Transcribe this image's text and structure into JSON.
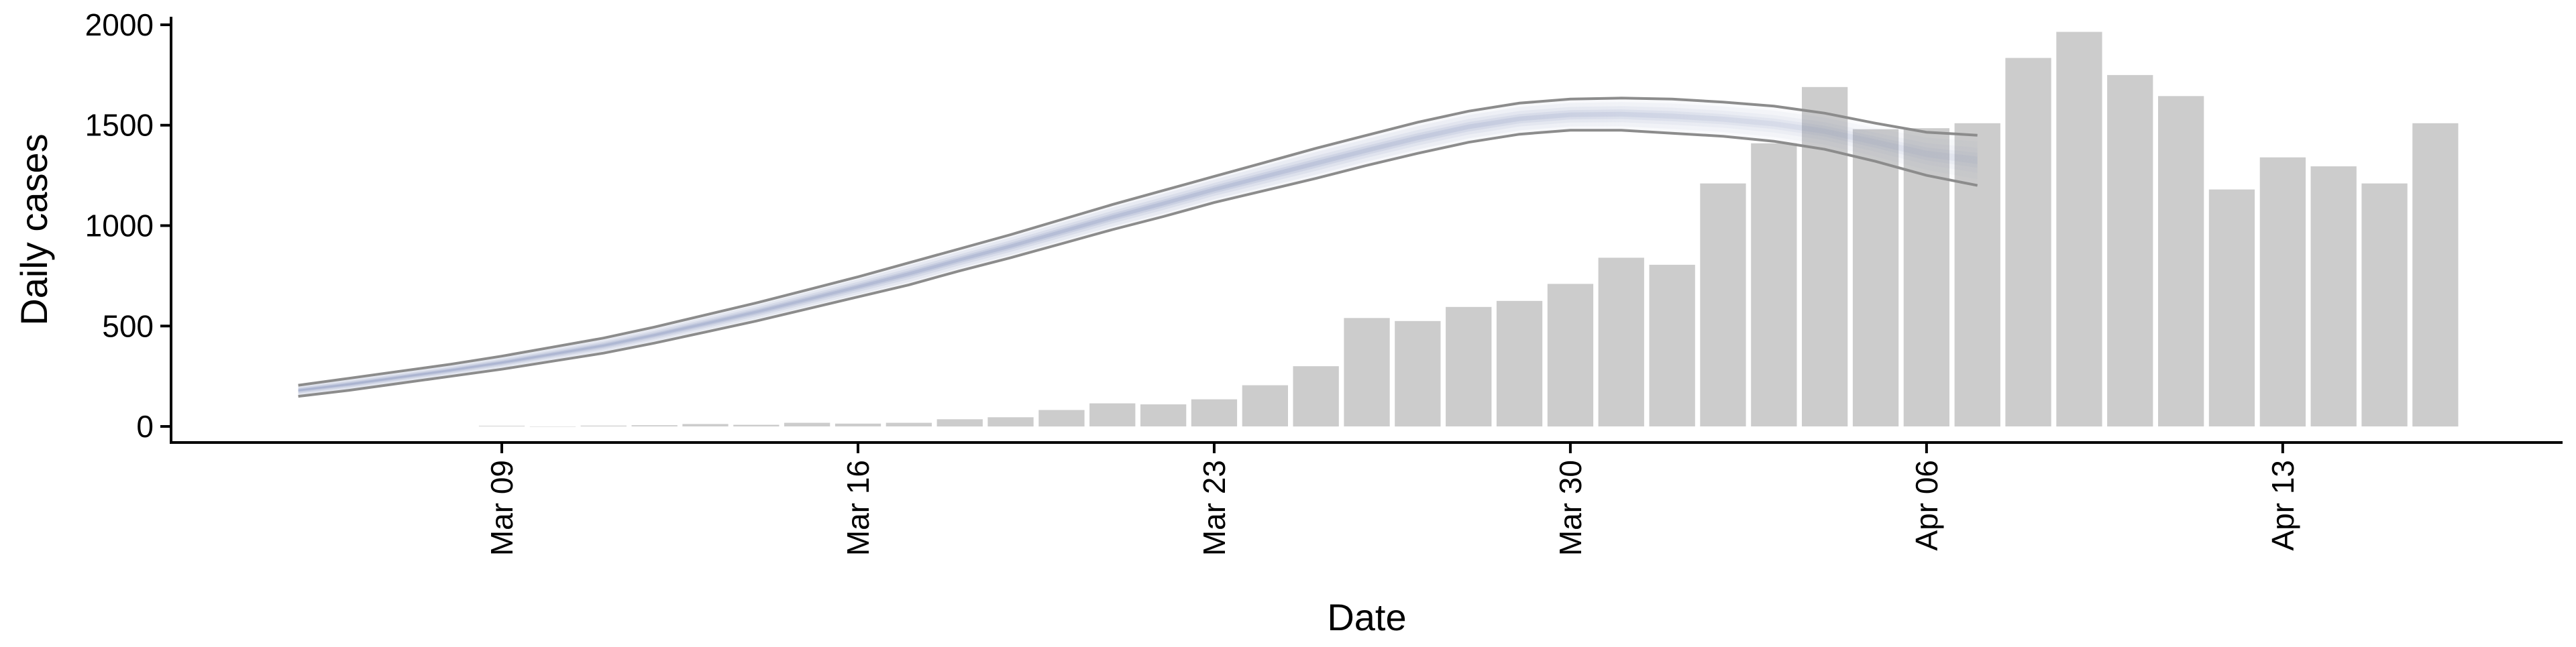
{
  "chart_data": {
    "type": "bar",
    "title": "",
    "xlabel": "Date",
    "ylabel": "Daily cases",
    "ylim": [
      -80,
      2040
    ],
    "yticks": [
      0,
      500,
      1000,
      1500,
      2000
    ],
    "xticks": [
      {
        "label": "Mar 09",
        "day": 9
      },
      {
        "label": "Mar 16",
        "day": 16
      },
      {
        "label": "Mar 23",
        "day": 23
      },
      {
        "label": "Mar 30",
        "day": 30
      },
      {
        "label": "Apr 06",
        "day": 37
      },
      {
        "label": "Apr 13",
        "day": 44
      }
    ],
    "x_is_date": true,
    "date_origin_label": "Mar 01",
    "x_range_days": [
      2.5,
      49.5
    ],
    "grid": false,
    "legend": "none",
    "bars": {
      "color": "#cccccc",
      "dates": [
        "Mar 09",
        "Mar 10",
        "Mar 11",
        "Mar 12",
        "Mar 13",
        "Mar 14",
        "Mar 15",
        "Mar 16",
        "Mar 17",
        "Mar 18",
        "Mar 19",
        "Mar 20",
        "Mar 21",
        "Mar 22",
        "Mar 23",
        "Mar 24",
        "Mar 25",
        "Mar 26",
        "Mar 27",
        "Mar 28",
        "Mar 29",
        "Mar 30",
        "Mar 31",
        "Apr 01",
        "Apr 02",
        "Apr 03",
        "Apr 04",
        "Apr 05",
        "Apr 06",
        "Apr 07",
        "Apr 08",
        "Apr 09",
        "Apr 10",
        "Apr 11",
        "Apr 12",
        "Apr 13",
        "Apr 14",
        "Apr 15",
        "Apr 16"
      ],
      "values": [
        3,
        0,
        4,
        6,
        12,
        8,
        18,
        14,
        18,
        36,
        46,
        82,
        115,
        110,
        135,
        205,
        300,
        540,
        525,
        595,
        625,
        710,
        840,
        805,
        1210,
        1410,
        1690,
        1480,
        1485,
        1510,
        1835,
        1965,
        1750,
        1645,
        1180,
        1340,
        1295,
        1210,
        1510
      ]
    },
    "estimate": {
      "color": "#7080b0",
      "outer_line_color": "#8c8c8c",
      "dates": [
        "Mar 05",
        "Mar 06",
        "Mar 07",
        "Mar 08",
        "Mar 09",
        "Mar 10",
        "Mar 11",
        "Mar 12",
        "Mar 13",
        "Mar 14",
        "Mar 15",
        "Mar 16",
        "Mar 17",
        "Mar 18",
        "Mar 19",
        "Mar 20",
        "Mar 21",
        "Mar 22",
        "Mar 23",
        "Mar 24",
        "Mar 25",
        "Mar 26",
        "Mar 27",
        "Mar 28",
        "Mar 29",
        "Mar 30",
        "Mar 31",
        "Apr 01",
        "Apr 02",
        "Apr 03",
        "Apr 04",
        "Apr 05",
        "Apr 06",
        "Apr 07"
      ],
      "lower": [
        150,
        180,
        215,
        250,
        285,
        325,
        365,
        415,
        470,
        525,
        585,
        645,
        705,
        775,
        840,
        910,
        980,
        1045,
        1115,
        1175,
        1235,
        1300,
        1360,
        1415,
        1455,
        1475,
        1475,
        1460,
        1445,
        1420,
        1380,
        1320,
        1250,
        1200
      ],
      "upper": [
        205,
        240,
        275,
        310,
        350,
        395,
        440,
        495,
        555,
        615,
        680,
        745,
        815,
        885,
        955,
        1030,
        1105,
        1175,
        1245,
        1315,
        1385,
        1450,
        1515,
        1570,
        1610,
        1630,
        1635,
        1630,
        1615,
        1595,
        1560,
        1510,
        1465,
        1450
      ],
      "median": [
        180,
        210,
        245,
        280,
        318,
        360,
        403,
        455,
        512,
        570,
        632,
        695,
        760,
        830,
        898,
        970,
        1042,
        1110,
        1180,
        1245,
        1310,
        1375,
        1437,
        1492,
        1532,
        1552,
        1555,
        1545,
        1530,
        1507,
        1470,
        1415,
        1357,
        1325
      ]
    }
  }
}
